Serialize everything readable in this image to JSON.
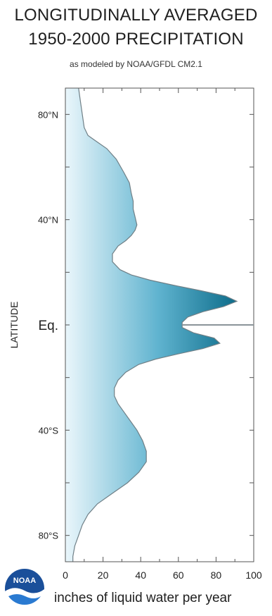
{
  "title_line1": "LONGITUDINALLY AVERAGED",
  "title_line2": "1950-2000 PRECIPITATION",
  "subtitle": "as modeled by NOAA/GFDL CM2.1",
  "logo_text": "NOAA",
  "colors": {
    "fill_light": "#eaf6fb",
    "fill_dark": "#0f6e8c",
    "outline": "#6f7f86",
    "axis": "#555555"
  },
  "chart_data": {
    "type": "area",
    "orientation": "horizontal",
    "title": "LONGITUDINALLY AVERAGED 1950-2000 PRECIPITATION",
    "subtitle": "as modeled by NOAA/GFDL CM2.1",
    "xlabel": "inches of liquid water per year",
    "ylabel": "LATITUDE",
    "xlim": [
      0,
      100
    ],
    "ylim": [
      -90,
      90
    ],
    "x_ticks": [
      0,
      20,
      40,
      60,
      80,
      100
    ],
    "x_tick_labels": [
      "0",
      "20",
      "40",
      "60",
      "80",
      "100"
    ],
    "y_ticks": [
      80,
      40,
      0,
      -40,
      -80
    ],
    "y_tick_labels": [
      "80°N",
      "40°N",
      "Eq.",
      "40°S",
      "80°S"
    ],
    "equator_line": true,
    "points": [
      {
        "lat": 90,
        "precip": 7
      },
      {
        "lat": 85,
        "precip": 8
      },
      {
        "lat": 80,
        "precip": 9
      },
      {
        "lat": 75,
        "precip": 10
      },
      {
        "lat": 72,
        "precip": 12
      },
      {
        "lat": 70,
        "precip": 16
      },
      {
        "lat": 67,
        "precip": 22
      },
      {
        "lat": 63,
        "precip": 27
      },
      {
        "lat": 58,
        "precip": 31
      },
      {
        "lat": 54,
        "precip": 34
      },
      {
        "lat": 50,
        "precip": 35
      },
      {
        "lat": 47,
        "precip": 36
      },
      {
        "lat": 44,
        "precip": 36
      },
      {
        "lat": 41,
        "precip": 37
      },
      {
        "lat": 38,
        "precip": 38
      },
      {
        "lat": 36,
        "precip": 37
      },
      {
        "lat": 34,
        "precip": 35
      },
      {
        "lat": 32,
        "precip": 32
      },
      {
        "lat": 30,
        "precip": 28
      },
      {
        "lat": 27,
        "precip": 25
      },
      {
        "lat": 24,
        "precip": 25
      },
      {
        "lat": 21,
        "precip": 29
      },
      {
        "lat": 19,
        "precip": 35
      },
      {
        "lat": 17,
        "precip": 45
      },
      {
        "lat": 15,
        "precip": 58
      },
      {
        "lat": 13,
        "precip": 72
      },
      {
        "lat": 11,
        "precip": 85
      },
      {
        "lat": 9,
        "precip": 91
      },
      {
        "lat": 7,
        "precip": 84
      },
      {
        "lat": 5,
        "precip": 73
      },
      {
        "lat": 3,
        "precip": 65
      },
      {
        "lat": 1,
        "precip": 62
      },
      {
        "lat": -1,
        "precip": 62
      },
      {
        "lat": -3,
        "precip": 68
      },
      {
        "lat": -5,
        "precip": 79
      },
      {
        "lat": -7,
        "precip": 82
      },
      {
        "lat": -9,
        "precip": 73
      },
      {
        "lat": -11,
        "precip": 60
      },
      {
        "lat": -13,
        "precip": 48
      },
      {
        "lat": -15,
        "precip": 39
      },
      {
        "lat": -18,
        "precip": 32
      },
      {
        "lat": -21,
        "precip": 28
      },
      {
        "lat": -24,
        "precip": 26
      },
      {
        "lat": -27,
        "precip": 26
      },
      {
        "lat": -30,
        "precip": 28
      },
      {
        "lat": -33,
        "precip": 31
      },
      {
        "lat": -36,
        "precip": 34
      },
      {
        "lat": -40,
        "precip": 38
      },
      {
        "lat": -44,
        "precip": 41
      },
      {
        "lat": -48,
        "precip": 43
      },
      {
        "lat": -52,
        "precip": 43
      },
      {
        "lat": -56,
        "precip": 39
      },
      {
        "lat": -60,
        "precip": 33
      },
      {
        "lat": -64,
        "precip": 25
      },
      {
        "lat": -68,
        "precip": 17
      },
      {
        "lat": -72,
        "precip": 12
      },
      {
        "lat": -76,
        "precip": 9
      },
      {
        "lat": -80,
        "precip": 7
      },
      {
        "lat": -84,
        "precip": 5
      },
      {
        "lat": -88,
        "precip": 4
      },
      {
        "lat": -90,
        "precip": 4
      }
    ]
  }
}
